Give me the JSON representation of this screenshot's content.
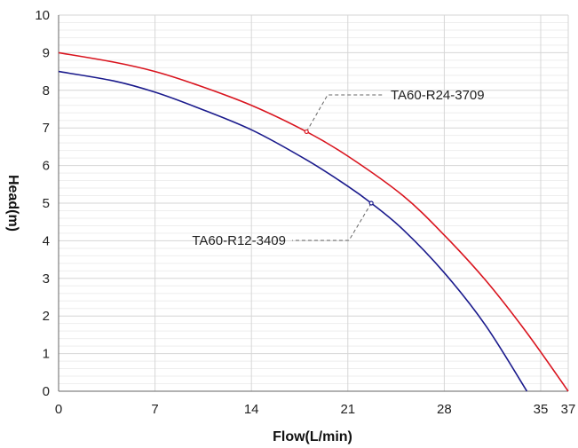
{
  "chart_data": {
    "type": "line",
    "xlabel": "Flow(L/min)",
    "ylabel": "Head(m)",
    "xlim": [
      0,
      37
    ],
    "ylim": [
      0,
      10
    ],
    "x_ticks": [
      0,
      7,
      14,
      21,
      28,
      35,
      37
    ],
    "y_ticks": [
      0,
      1,
      2,
      3,
      4,
      5,
      6,
      7,
      8,
      9,
      10
    ],
    "grid": true,
    "series": [
      {
        "name": "TA60-R24-3709",
        "color": "#d9141e",
        "x": [
          0,
          4,
          7,
          10,
          14,
          18,
          21,
          25,
          28,
          31,
          34,
          37
        ],
        "y": [
          9.0,
          8.75,
          8.5,
          8.15,
          7.6,
          6.9,
          6.25,
          5.2,
          4.15,
          2.95,
          1.55,
          0.0
        ]
      },
      {
        "name": "TA60-R12-3409",
        "color": "#1a1a8c",
        "x": [
          0,
          4,
          7,
          10,
          14,
          18,
          21,
          22.7,
          25,
          28,
          31,
          34
        ],
        "y": [
          8.5,
          8.25,
          7.95,
          7.55,
          6.95,
          6.15,
          5.45,
          5.0,
          4.3,
          3.15,
          1.75,
          0.0
        ]
      }
    ],
    "annotations": [
      {
        "text": "TA60-R24-3709",
        "series": 0,
        "point": [
          18,
          6.9
        ]
      },
      {
        "text": "TA60-R12-3409",
        "series": 1,
        "point": [
          22.7,
          5.0
        ]
      }
    ]
  }
}
